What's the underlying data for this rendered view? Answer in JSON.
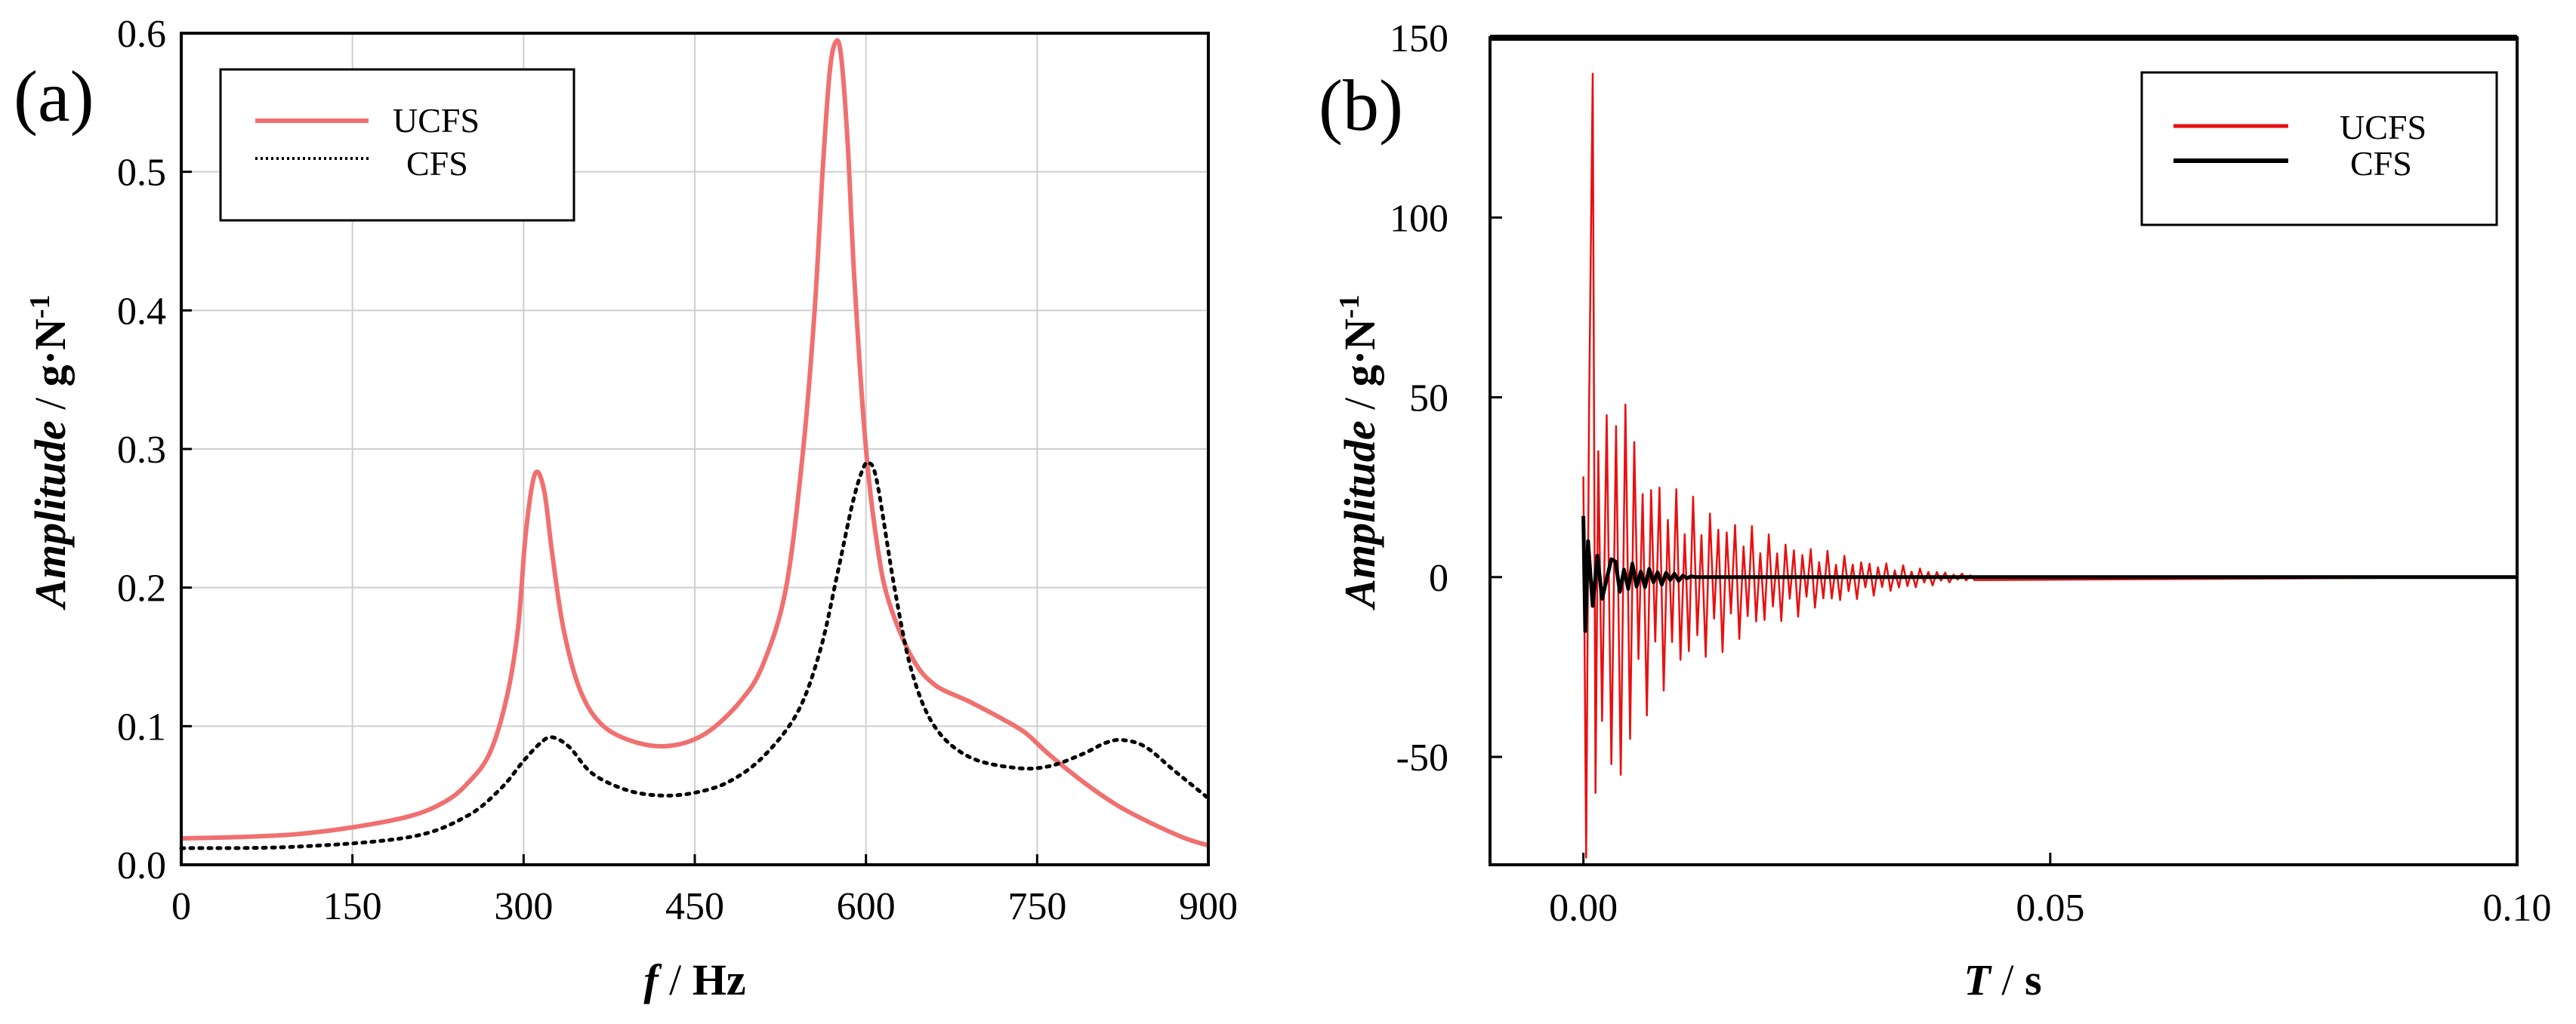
{
  "chart_data": [
    {
      "type": "line",
      "panel_label": "(a)",
      "xlabel": {
        "var": "f",
        "sep": " / ",
        "unit": "Hz"
      },
      "ylabel": {
        "var": "Amplitude",
        "sep": " / ",
        "unit": "g·N",
        "sup": "-1"
      },
      "xlim": [
        0,
        900
      ],
      "ylim": [
        0,
        0.6
      ],
      "xticks": [
        0,
        150,
        300,
        450,
        600,
        750,
        900
      ],
      "xtick_labels": [
        "0",
        "150",
        "300",
        "450",
        "600",
        "750",
        "900"
      ],
      "yticks": [
        0,
        0.1,
        0.2,
        0.3,
        0.4,
        0.5,
        0.6
      ],
      "ytick_labels": [
        "0.0",
        "0.1",
        "0.2",
        "0.3",
        "0.4",
        "0.5",
        "0.6"
      ],
      "grid": true,
      "legend_position": "top-left",
      "series": [
        {
          "name": "UCFS",
          "color": "#f07070",
          "style": "solid",
          "x": [
            0,
            50,
            100,
            150,
            200,
            230,
            250,
            270,
            285,
            295,
            302,
            310,
            318,
            325,
            335,
            350,
            370,
            400,
            430,
            460,
            490,
            510,
            530,
            545,
            555,
            562,
            568,
            573,
            578,
            584,
            590,
            600,
            610,
            620,
            640,
            660,
            690,
            720,
            740,
            760,
            790,
            820,
            850,
            880,
            900
          ],
          "values": [
            0.019,
            0.02,
            0.022,
            0.027,
            0.035,
            0.045,
            0.058,
            0.08,
            0.12,
            0.17,
            0.24,
            0.282,
            0.27,
            0.225,
            0.17,
            0.125,
            0.1,
            0.088,
            0.086,
            0.095,
            0.118,
            0.145,
            0.2,
            0.3,
            0.4,
            0.5,
            0.57,
            0.593,
            0.585,
            0.52,
            0.42,
            0.3,
            0.23,
            0.19,
            0.15,
            0.13,
            0.118,
            0.105,
            0.095,
            0.08,
            0.06,
            0.043,
            0.03,
            0.019,
            0.014
          ]
        },
        {
          "name": "CFS",
          "color": "#000000",
          "style": "dotted",
          "x": [
            0,
            100,
            200,
            250,
            280,
            300,
            315,
            325,
            340,
            360,
            390,
            420,
            450,
            480,
            510,
            540,
            560,
            575,
            588,
            597,
            603,
            610,
            625,
            640,
            660,
            690,
            730,
            760,
            790,
            810,
            825,
            845,
            870,
            900
          ],
          "values": [
            0.012,
            0.013,
            0.02,
            0.035,
            0.055,
            0.075,
            0.088,
            0.092,
            0.085,
            0.066,
            0.054,
            0.05,
            0.052,
            0.06,
            0.078,
            0.11,
            0.155,
            0.21,
            0.26,
            0.285,
            0.29,
            0.275,
            0.2,
            0.14,
            0.1,
            0.078,
            0.07,
            0.071,
            0.08,
            0.088,
            0.09,
            0.085,
            0.068,
            0.048
          ]
        }
      ]
    },
    {
      "type": "line",
      "panel_label": "(b)",
      "xlabel": {
        "var": "T",
        "sep": " / ",
        "unit": "s"
      },
      "ylabel": {
        "var": "Amplitude",
        "sep": " / ",
        "unit": "g·N",
        "sup": "-1"
      },
      "xlim": [
        -0.01,
        0.1
      ],
      "ylim": [
        -80,
        150
      ],
      "xticks": [
        0.0,
        0.05,
        0.1
      ],
      "xtick_labels": [
        "0.00",
        "0.05",
        "0.10"
      ],
      "yticks": [
        -50,
        0,
        50,
        100,
        150
      ],
      "ytick_labels": [
        "-50",
        "0",
        "50",
        "100",
        "150"
      ],
      "grid": false,
      "legend_position": "top-right",
      "series": [
        {
          "name": "UCFS",
          "color": "#e81010",
          "style": "solid",
          "description": "decaying oscillation, peak 140 at ~0.001 s, min -78, envelope ~40 at 0.005 s, ~18 at 0.015 s, ~5 at 0.03 s, ~0 after 0.04 s",
          "x": [
            0.0,
            0.0003,
            0.0006,
            0.001,
            0.0013,
            0.0016,
            0.002,
            0.0025,
            0.003,
            0.0035,
            0.004,
            0.0045,
            0.005,
            0.006,
            0.008,
            0.01,
            0.015,
            0.02,
            0.025,
            0.03,
            0.035,
            0.04,
            0.1
          ],
          "values": [
            28,
            -78,
            45,
            140,
            -60,
            35,
            -40,
            45,
            -52,
            42,
            -55,
            48,
            -45,
            36,
            30,
            25,
            18,
            12,
            8,
            5,
            3,
            1,
            0
          ]
        },
        {
          "name": "CFS",
          "color": "#000000",
          "style": "solid",
          "description": "small damped oscillation, ±17 at start, decays to ~0 by 0.012 s",
          "x": [
            0.0,
            0.0002,
            0.0005,
            0.001,
            0.0015,
            0.002,
            0.003,
            0.004,
            0.005,
            0.006,
            0.008,
            0.01,
            0.012,
            0.1
          ],
          "values": [
            17,
            -15,
            10,
            -8,
            6,
            -6,
            5,
            -4,
            4,
            -3,
            2,
            1,
            0,
            0
          ]
        }
      ]
    }
  ]
}
